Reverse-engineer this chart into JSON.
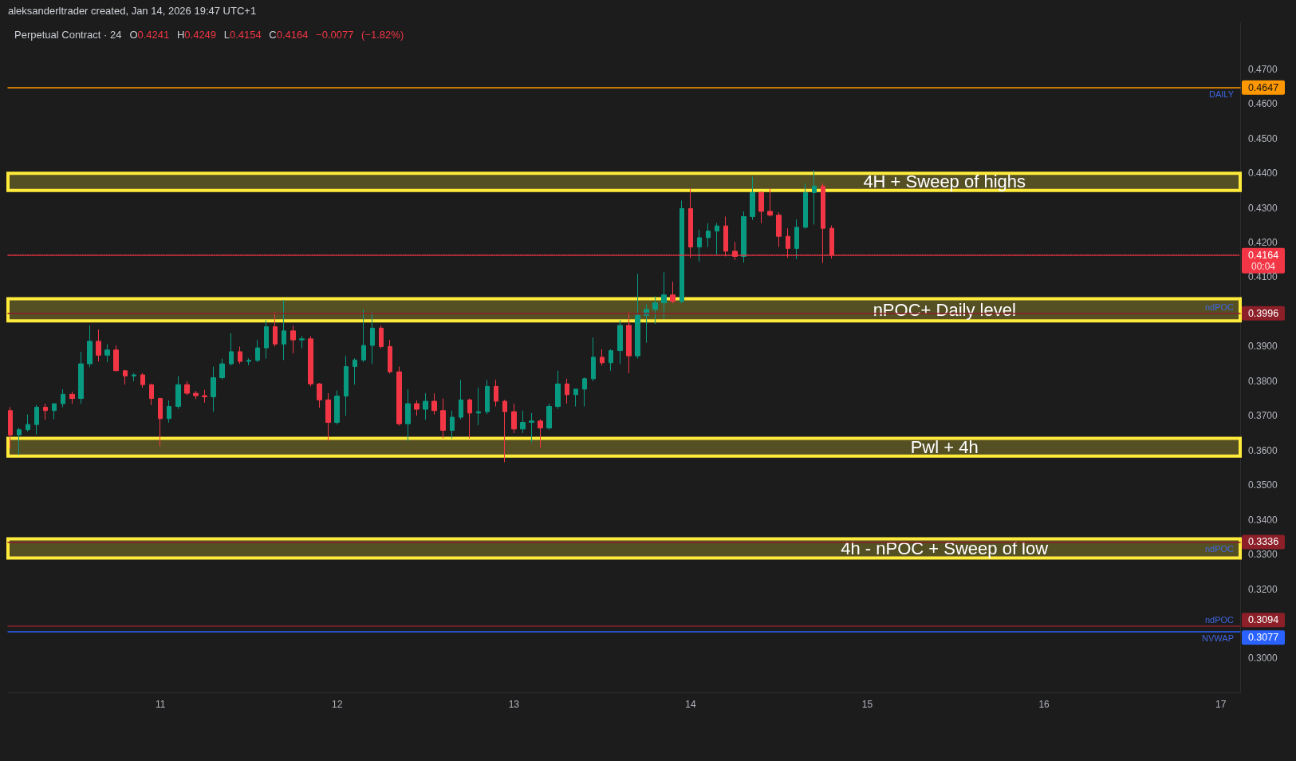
{
  "chart_data": {
    "type": "candlestick",
    "title": "Perpetual Contract · 24",
    "subtitle": "O0.4241 H0.4249 L0.4154 C0.4164 −0.0077 (−1.82%)",
    "annotations": [
      "aleksanderltrader created, Jan 14, 2026 19:47 UTC+1",
      "00:04",
      {
        "text": "DAILY",
        "y": 0.4647
      },
      {
        "text": "ndPOC",
        "y": 0.3996
      },
      {
        "text": "ndPOC",
        "y": 0.3336
      },
      {
        "text": "ndPOC",
        "y": 0.3094
      },
      {
        "text": "NVWAP",
        "y": 0.3077
      }
    ],
    "x": [
      "2026-01-10T03:36",
      "2026-01-10T04:48",
      "2026-01-10T06:00",
      "2026-01-10T07:12",
      "2026-01-10T08:24",
      "2026-01-10T09:36",
      "2026-01-10T10:48",
      "2026-01-10T12:00",
      "2026-01-10T13:12",
      "2026-01-10T14:24",
      "2026-01-10T15:36",
      "2026-01-10T16:48",
      "2026-01-10T18:00",
      "2026-01-10T19:12",
      "2026-01-10T20:24",
      "2026-01-10T21:36",
      "2026-01-10T22:48",
      "2026-01-11T00:00",
      "2026-01-11T01:12",
      "2026-01-11T02:24",
      "2026-01-11T03:36",
      "2026-01-11T04:48",
      "2026-01-11T06:00",
      "2026-01-11T07:12",
      "2026-01-11T08:24",
      "2026-01-11T09:36",
      "2026-01-11T10:48",
      "2026-01-11T12:00",
      "2026-01-11T13:12",
      "2026-01-11T14:24",
      "2026-01-11T15:36",
      "2026-01-11T16:48",
      "2026-01-11T18:00",
      "2026-01-11T19:12",
      "2026-01-11T20:24",
      "2026-01-11T21:36",
      "2026-01-11T22:48",
      "2026-01-12T00:00",
      "2026-01-12T01:12",
      "2026-01-12T02:24",
      "2026-01-12T03:36",
      "2026-01-12T04:48",
      "2026-01-12T06:00",
      "2026-01-12T07:12",
      "2026-01-12T08:24",
      "2026-01-12T09:36",
      "2026-01-12T10:48",
      "2026-01-12T12:00",
      "2026-01-12T13:12",
      "2026-01-12T14:24",
      "2026-01-12T15:36",
      "2026-01-12T16:48",
      "2026-01-12T18:00",
      "2026-01-12T19:12",
      "2026-01-12T20:24",
      "2026-01-12T21:36",
      "2026-01-12T22:48",
      "2026-01-13T00:00",
      "2026-01-13T01:12",
      "2026-01-13T02:24",
      "2026-01-13T03:36",
      "2026-01-13T04:48",
      "2026-01-13T06:00",
      "2026-01-13T07:12",
      "2026-01-13T08:24",
      "2026-01-13T09:36",
      "2026-01-13T10:48",
      "2026-01-13T12:00",
      "2026-01-13T13:12",
      "2026-01-13T14:24",
      "2026-01-13T15:36",
      "2026-01-13T16:48",
      "2026-01-13T18:00",
      "2026-01-13T19:12",
      "2026-01-13T20:24",
      "2026-01-13T21:36",
      "2026-01-13T22:48",
      "2026-01-14T00:00",
      "2026-01-14T01:12",
      "2026-01-14T02:24",
      "2026-01-14T03:36",
      "2026-01-14T04:48",
      "2026-01-14T06:00",
      "2026-01-14T07:12",
      "2026-01-14T08:24",
      "2026-01-14T09:36",
      "2026-01-14T10:48",
      "2026-01-14T12:00",
      "2026-01-14T13:12",
      "2026-01-14T14:24",
      "2026-01-14T15:36",
      "2026-01-14T16:48",
      "2026-01-14T18:00",
      "2026-01-14T19:12"
    ],
    "ohlc": [
      [
        0.3715,
        0.3725,
        0.3605,
        0.3645
      ],
      [
        0.3645,
        0.3665,
        0.3587,
        0.366
      ],
      [
        0.366,
        0.3704,
        0.3655,
        0.3675
      ],
      [
        0.3675,
        0.3731,
        0.3646,
        0.3725
      ],
      [
        0.3725,
        0.3735,
        0.3689,
        0.3715
      ],
      [
        0.3715,
        0.3735,
        0.369,
        0.3735
      ],
      [
        0.3735,
        0.3777,
        0.3725,
        0.3762
      ],
      [
        0.3762,
        0.377,
        0.3735,
        0.375
      ],
      [
        0.375,
        0.3885,
        0.3735,
        0.385
      ],
      [
        0.385,
        0.3961,
        0.384,
        0.3915
      ],
      [
        0.3915,
        0.3949,
        0.3857,
        0.3875
      ],
      [
        0.3875,
        0.3907,
        0.3855,
        0.389
      ],
      [
        0.389,
        0.3903,
        0.383,
        0.383
      ],
      [
        0.383,
        0.3832,
        0.379,
        0.3815
      ],
      [
        0.3815,
        0.3823,
        0.38,
        0.3818
      ],
      [
        0.3818,
        0.3823,
        0.3781,
        0.379
      ],
      [
        0.379,
        0.3792,
        0.3731,
        0.375
      ],
      [
        0.375,
        0.3752,
        0.3612,
        0.3692
      ],
      [
        0.3692,
        0.3745,
        0.368,
        0.3727
      ],
      [
        0.3727,
        0.3815,
        0.372,
        0.379
      ],
      [
        0.379,
        0.38,
        0.376,
        0.3765
      ],
      [
        0.3765,
        0.3772,
        0.3748,
        0.3758
      ],
      [
        0.3758,
        0.3775,
        0.3738,
        0.3755
      ],
      [
        0.3755,
        0.3842,
        0.3712,
        0.381
      ],
      [
        0.381,
        0.3865,
        0.3805,
        0.385
      ],
      [
        0.385,
        0.3938,
        0.3845,
        0.3885
      ],
      [
        0.3885,
        0.39,
        0.385,
        0.3857
      ],
      [
        0.3857,
        0.3866,
        0.3846,
        0.386
      ],
      [
        0.386,
        0.3919,
        0.3855,
        0.3896
      ],
      [
        0.3896,
        0.3976,
        0.3865,
        0.3957
      ],
      [
        0.3957,
        0.3999,
        0.39,
        0.3907
      ],
      [
        0.3907,
        0.4034,
        0.3861,
        0.3945
      ],
      [
        0.3945,
        0.396,
        0.388,
        0.3919
      ],
      [
        0.3919,
        0.393,
        0.3895,
        0.3922
      ],
      [
        0.3922,
        0.393,
        0.3785,
        0.3792
      ],
      [
        0.3792,
        0.3795,
        0.3723,
        0.3746
      ],
      [
        0.3746,
        0.3765,
        0.3627,
        0.3681
      ],
      [
        0.3681,
        0.3773,
        0.3675,
        0.3757
      ],
      [
        0.3757,
        0.3873,
        0.37,
        0.3842
      ],
      [
        0.3842,
        0.3866,
        0.379,
        0.3861
      ],
      [
        0.3861,
        0.4007,
        0.3855,
        0.3903
      ],
      [
        0.3903,
        0.3999,
        0.385,
        0.3953
      ],
      [
        0.3953,
        0.396,
        0.3895,
        0.39
      ],
      [
        0.39,
        0.3919,
        0.3822,
        0.3827
      ],
      [
        0.3827,
        0.3842,
        0.3672,
        0.3677
      ],
      [
        0.3677,
        0.3777,
        0.3627,
        0.3735
      ],
      [
        0.3735,
        0.3745,
        0.37,
        0.3719
      ],
      [
        0.3719,
        0.3765,
        0.3689,
        0.3742
      ],
      [
        0.3742,
        0.3765,
        0.3704,
        0.3715
      ],
      [
        0.3715,
        0.375,
        0.3635,
        0.3658
      ],
      [
        0.3658,
        0.3715,
        0.3635,
        0.3696
      ],
      [
        0.3696,
        0.3804,
        0.369,
        0.3746
      ],
      [
        0.3746,
        0.375,
        0.3635,
        0.3708
      ],
      [
        0.3708,
        0.3781,
        0.3673,
        0.3712
      ],
      [
        0.3712,
        0.3804,
        0.3705,
        0.3785
      ],
      [
        0.3785,
        0.3804,
        0.3727,
        0.3742
      ],
      [
        0.3742,
        0.3746,
        0.3566,
        0.3712
      ],
      [
        0.3712,
        0.3735,
        0.365,
        0.3662
      ],
      [
        0.3662,
        0.3715,
        0.365,
        0.3681
      ],
      [
        0.3681,
        0.3708,
        0.3623,
        0.3685
      ],
      [
        0.3685,
        0.369,
        0.3608,
        0.3665
      ],
      [
        0.3665,
        0.3735,
        0.366,
        0.3727
      ],
      [
        0.3727,
        0.383,
        0.372,
        0.3792
      ],
      [
        0.3792,
        0.3807,
        0.3735,
        0.3761
      ],
      [
        0.3761,
        0.3777,
        0.3727,
        0.3777
      ],
      [
        0.3777,
        0.3811,
        0.3727,
        0.3807
      ],
      [
        0.3807,
        0.3926,
        0.38,
        0.3869
      ],
      [
        0.3869,
        0.3892,
        0.3845,
        0.3853
      ],
      [
        0.3853,
        0.3892,
        0.383,
        0.3888
      ],
      [
        0.3888,
        0.3976,
        0.385,
        0.3961
      ],
      [
        0.3961,
        0.3999,
        0.3823,
        0.3873
      ],
      [
        0.3873,
        0.411,
        0.3865,
        0.399
      ],
      [
        0.399,
        0.4022,
        0.3911,
        0.4007
      ],
      [
        0.4007,
        0.4045,
        0.3965,
        0.4026
      ],
      [
        0.4026,
        0.4114,
        0.398,
        0.4049
      ],
      [
        0.4049,
        0.4087,
        0.4025,
        0.403
      ],
      [
        0.403,
        0.4321,
        0.4025,
        0.4298
      ],
      [
        0.4298,
        0.4356,
        0.4156,
        0.4187
      ],
      [
        0.4187,
        0.4237,
        0.4145,
        0.4214
      ],
      [
        0.4214,
        0.4256,
        0.4187,
        0.4233
      ],
      [
        0.4233,
        0.4256,
        0.4164,
        0.4248
      ],
      [
        0.4248,
        0.4275,
        0.416,
        0.4175
      ],
      [
        0.4175,
        0.4202,
        0.415,
        0.416
      ],
      [
        0.416,
        0.429,
        0.4142,
        0.4275
      ],
      [
        0.4275,
        0.439,
        0.4265,
        0.4344
      ],
      [
        0.4344,
        0.4348,
        0.4256,
        0.429
      ],
      [
        0.429,
        0.4356,
        0.4275,
        0.4279
      ],
      [
        0.4279,
        0.4287,
        0.4187,
        0.4218
      ],
      [
        0.4218,
        0.4241,
        0.4156,
        0.4183
      ],
      [
        0.4183,
        0.4267,
        0.4152,
        0.4244
      ],
      [
        0.4244,
        0.4371,
        0.424,
        0.4344
      ],
      [
        0.4344,
        0.4409,
        0.4252,
        0.4363
      ],
      [
        0.4363,
        0.4371,
        0.4141,
        0.4241
      ],
      [
        0.4241,
        0.4249,
        0.4154,
        0.4164
      ]
    ],
    "colors": [
      "#f23645",
      "#089981",
      "#089981",
      "#089981",
      "#f23645",
      "#089981",
      "#089981",
      "#f23645",
      "#089981",
      "#089981",
      "#f23645",
      "#089981",
      "#f23645",
      "#f23645",
      "#089981",
      "#f23645",
      "#f23645",
      "#f23645",
      "#089981",
      "#089981",
      "#f23645",
      "#f23645",
      "#f23645",
      "#089981",
      "#089981",
      "#089981",
      "#f23645",
      "#089981",
      "#089981",
      "#089981",
      "#f23645",
      "#089981",
      "#f23645",
      "#089981",
      "#f23645",
      "#f23645",
      "#f23645",
      "#089981",
      "#089981",
      "#089981",
      "#089981",
      "#089981",
      "#f23645",
      "#f23645",
      "#f23645",
      "#089981",
      "#f23645",
      "#089981",
      "#f23645",
      "#f23645",
      "#089981",
      "#089981",
      "#f23645",
      "#089981",
      "#089981",
      "#f23645",
      "#f23645",
      "#f23645",
      "#089981",
      "#089981",
      "#f23645",
      "#089981",
      "#089981",
      "#f23645",
      "#089981",
      "#089981",
      "#089981",
      "#f23645",
      "#089981",
      "#089981",
      "#f23645",
      "#089981",
      "#089981",
      "#089981",
      "#089981",
      "#f23645",
      "#089981",
      "#f23645",
      "#089981",
      "#089981",
      "#089981",
      "#f23645",
      "#f23645",
      "#089981",
      "#089981",
      "#f23645",
      "#f23645",
      "#f23645",
      "#f23645",
      "#089981",
      "#089981",
      "#089981",
      "#f23645",
      "#f23645"
    ],
    "xlim": [
      "2026-01-10T03:18",
      "2026-01-17T02:38"
    ],
    "xticks": [
      {
        "value": "2026-01-11",
        "label": "11"
      },
      {
        "value": "2026-01-12",
        "label": "12"
      },
      {
        "value": "2026-01-13",
        "label": "13"
      },
      {
        "value": "2026-01-14",
        "label": "14"
      },
      {
        "value": "2026-01-15",
        "label": "15"
      },
      {
        "value": "2026-01-16",
        "label": "16"
      },
      {
        "value": "2026-01-17",
        "label": "17"
      }
    ],
    "ylim": [
      0.2902,
      0.4833
    ],
    "yticks": [
      {
        "value": 0.3,
        "label": "0.3000"
      },
      {
        "value": 0.32,
        "label": "0.3200"
      },
      {
        "value": 0.33,
        "label": "0.3300"
      },
      {
        "value": 0.34,
        "label": "0.3400"
      },
      {
        "value": 0.35,
        "label": "0.3500"
      },
      {
        "value": 0.36,
        "label": "0.3600"
      },
      {
        "value": 0.37,
        "label": "0.3700"
      },
      {
        "value": 0.38,
        "label": "0.3800"
      },
      {
        "value": 0.39,
        "label": "0.3900"
      },
      {
        "value": 0.41,
        "label": "0.4100"
      },
      {
        "value": 0.42,
        "label": "0.4200"
      },
      {
        "value": 0.43,
        "label": "0.4300"
      },
      {
        "value": 0.44,
        "label": "0.4400"
      },
      {
        "value": 0.45,
        "label": "0.4500"
      },
      {
        "value": 0.46,
        "label": "0.4600"
      },
      {
        "value": 0.47,
        "label": "0.4700"
      }
    ],
    "ref_lines": [
      {
        "axis": "y",
        "value": 0.4647,
        "label": "0.4647",
        "color": "#ff9800"
      },
      {
        "axis": "y",
        "value": 0.4164,
        "label": "0.4164",
        "color": "#f23645",
        "line_style": "dotted"
      },
      {
        "axis": "y",
        "value": 0.3996,
        "label": "0.3996",
        "color": "#8c1f28"
      },
      {
        "axis": "y",
        "value": 0.3336,
        "label": "0.3336",
        "color": "#8c1f28"
      },
      {
        "axis": "y",
        "value": 0.3094,
        "label": "0.3094",
        "color": "#8c1f28"
      },
      {
        "axis": "y",
        "value": 0.3077,
        "label": "0.3077",
        "color": "#2962ff"
      }
    ],
    "bands": [
      {
        "axis": "y",
        "from": 0.435,
        "to": 0.44,
        "label": "4H + Sweep of highs",
        "color": "#ffeb3b"
      },
      {
        "axis": "y",
        "from": 0.3974,
        "to": 0.4038,
        "label": "nPOC+ Daily level",
        "color": "#ffeb3b"
      },
      {
        "axis": "y",
        "from": 0.3584,
        "to": 0.3635,
        "label": "Pwl + 4h",
        "color": "#ffeb3b"
      },
      {
        "axis": "y",
        "from": 0.329,
        "to": 0.3345,
        "label": "4h - nPOC + Sweep of low",
        "color": "#ffeb3b"
      }
    ]
  }
}
